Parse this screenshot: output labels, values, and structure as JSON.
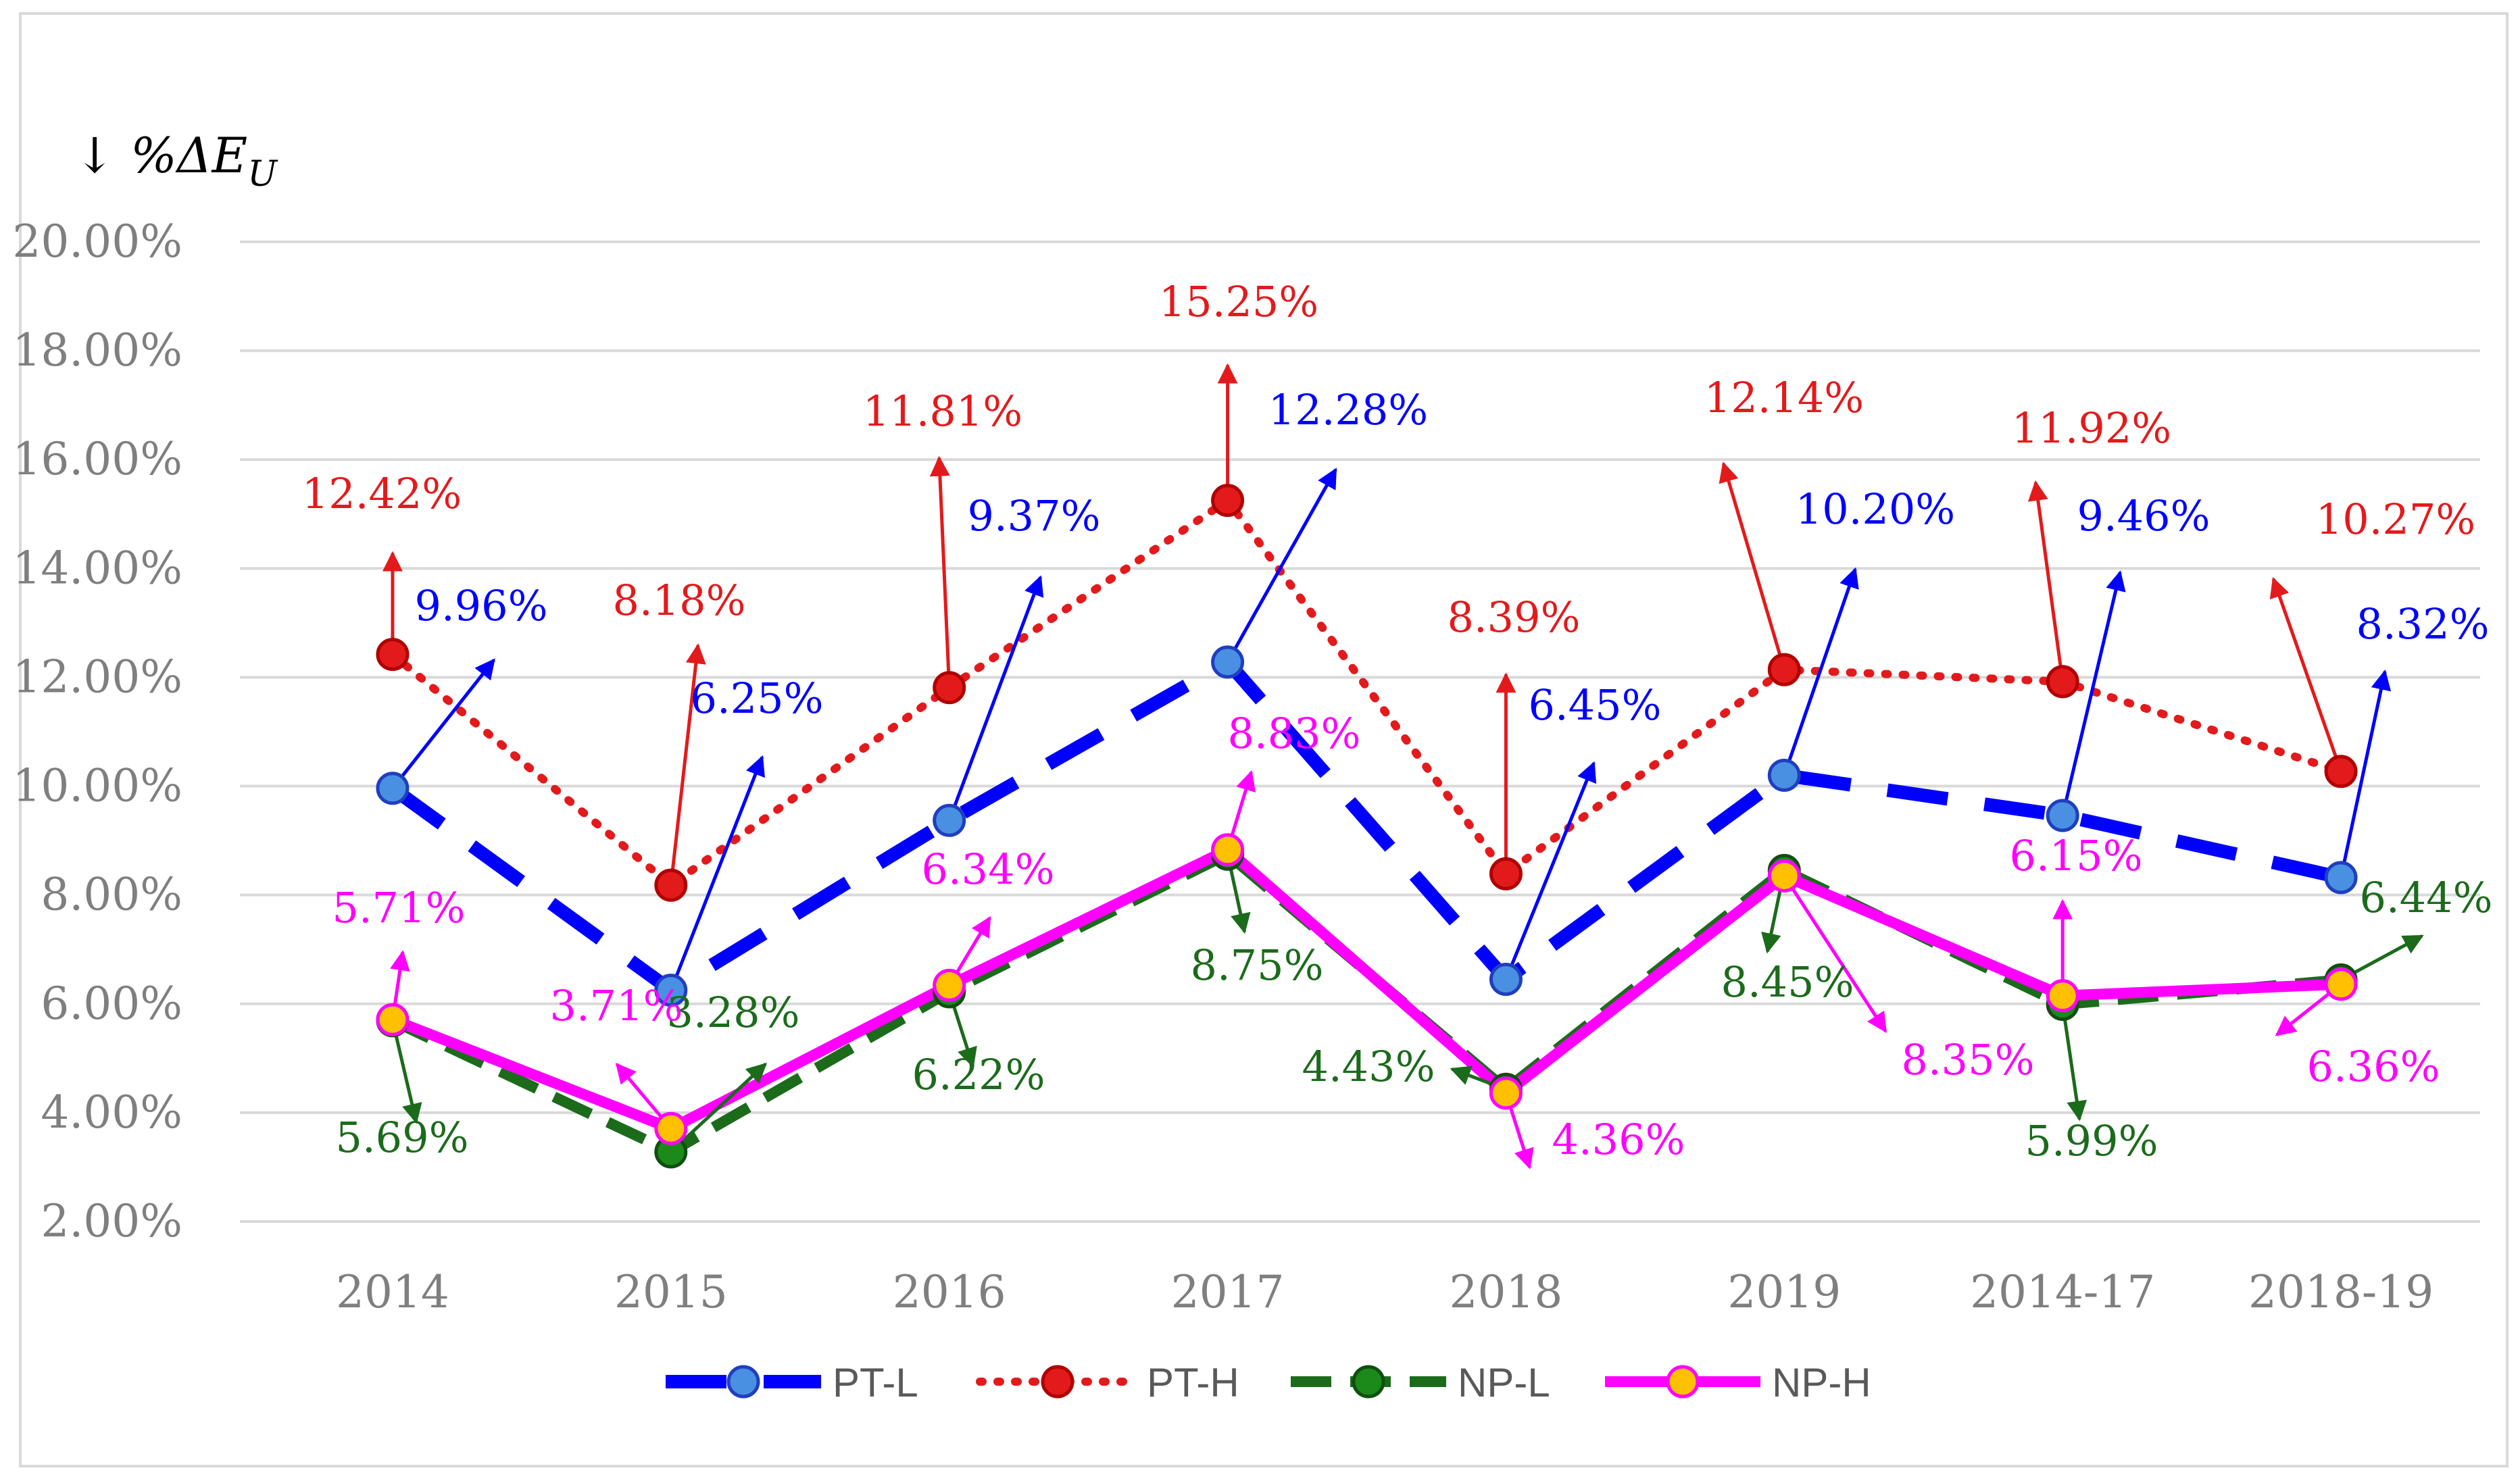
{
  "chart_data": {
    "type": "line",
    "ylabel": "↓ %ΔE",
    "ylabel_subscript": "U",
    "categories": [
      "2014",
      "2015",
      "2016",
      "2017",
      "2018",
      "2019",
      "2014-17",
      "2018-19"
    ],
    "ylim": [
      2,
      20
    ],
    "yticks": [
      2,
      4,
      6,
      8,
      10,
      12,
      14,
      16,
      18,
      20
    ],
    "ytick_labels": [
      "2.00%",
      "4.00%",
      "6.00%",
      "8.00%",
      "10.00%",
      "12.00%",
      "14.00%",
      "16.00%",
      "18.00%",
      "20.00%"
    ],
    "grid": true,
    "legend_position": "bottom",
    "series": [
      {
        "name": "PT-L",
        "color": "#0000ff",
        "marker_color": "#4a90e2",
        "style": "long-dash",
        "values": [
          9.96,
          6.25,
          9.37,
          12.28,
          6.45,
          10.2,
          9.46,
          8.32
        ],
        "labels": [
          "9.96%",
          "6.25%",
          "9.37%",
          "12.28%",
          "6.45%",
          "10.20%",
          "9.46%",
          "8.32%"
        ]
      },
      {
        "name": "PT-H",
        "color": "#e31a1c",
        "marker_color": "#e31a1c",
        "style": "dotted",
        "values": [
          12.42,
          8.18,
          11.81,
          15.25,
          8.39,
          12.14,
          11.92,
          10.27
        ],
        "labels": [
          "12.42%",
          "8.18%",
          "11.81%",
          "15.25%",
          "8.39%",
          "12.14%",
          "11.92%",
          "10.27%"
        ]
      },
      {
        "name": "NP-L",
        "color": "#1b6b1b",
        "marker_color": "#1b8a1b",
        "style": "dashed",
        "values": [
          5.69,
          3.28,
          6.22,
          8.75,
          4.43,
          8.45,
          5.99,
          6.44
        ],
        "labels": [
          "5.69%",
          "3.28%",
          "6.22%",
          "8.75%",
          "4.43%",
          "8.45%",
          "5.99%",
          "6.44%"
        ]
      },
      {
        "name": "NP-H",
        "color": "#ff00ff",
        "marker_color": "#ffc000",
        "style": "solid",
        "values": [
          5.71,
          3.71,
          6.34,
          8.83,
          4.36,
          8.35,
          6.15,
          6.36
        ],
        "labels": [
          "5.71%",
          "3.71%",
          "6.34%",
          "8.83%",
          "4.36%",
          "8.35%",
          "6.15%",
          "6.36%"
        ]
      }
    ]
  }
}
